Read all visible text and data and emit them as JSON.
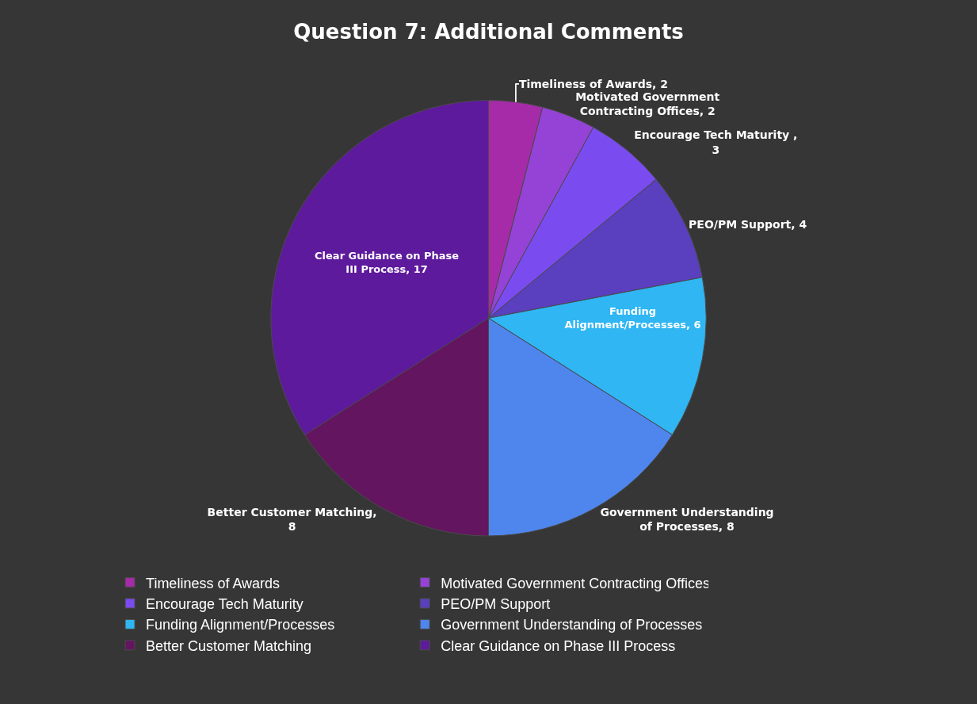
{
  "chart_data": {
    "type": "pie",
    "title": "Question 7: Additional Comments",
    "categories": [
      "Timeliness of Awards",
      "Motivated Government Contracting Offices",
      "Encourage Tech Maturity",
      "PEO/PM Support",
      "Funding Alignment/Processes",
      "Government Understanding of Processes",
      "Better Customer Matching",
      "Clear Guidance on Phase III Process"
    ],
    "values": [
      2,
      2,
      3,
      4,
      6,
      8,
      8,
      17
    ],
    "colors": [
      "#a62ba8",
      "#9443d6",
      "#7a4cf0",
      "#5a3fbe",
      "#2fb6f3",
      "#4f86ee",
      "#63155f",
      "#5e1a9c"
    ],
    "value_labels": [
      "Timeliness of Awards, 2",
      "Motivated Government Contracting Offices, 2",
      "Encourage Tech Maturity , 3",
      "PEO/PM Support, 4",
      "Funding Alignment/Processes, 6",
      "Government Understanding of Processes, 8",
      "Better Customer Matching, 8",
      "Clear Guidance on Phase III Process, 17"
    ],
    "legend": "bottom"
  }
}
